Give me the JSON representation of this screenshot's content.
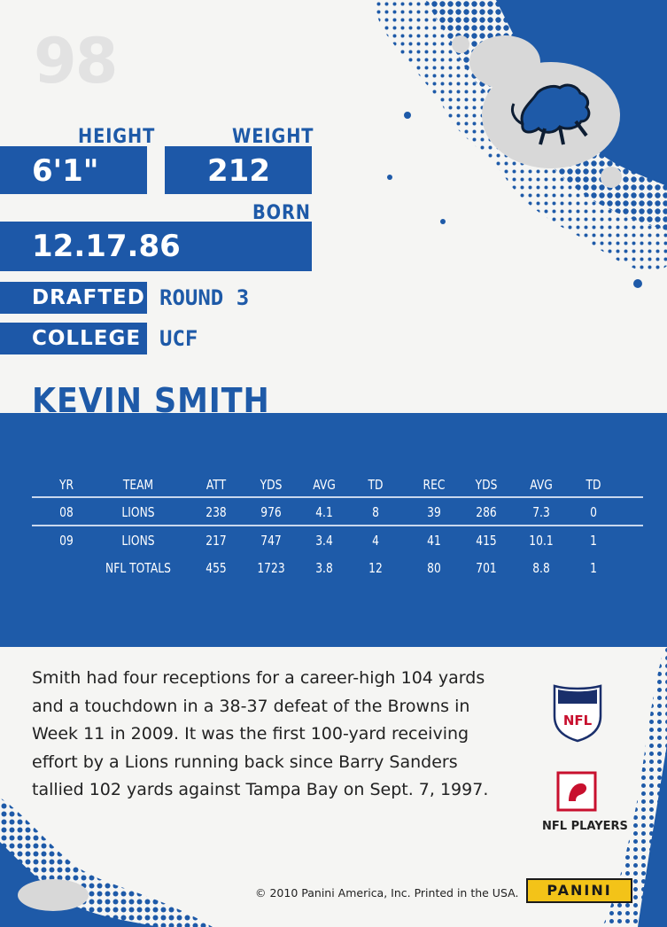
{
  "card_number": "98",
  "stats_labels": {
    "height": "HEIGHT",
    "weight": "WEIGHT",
    "born": "BORN",
    "drafted": "DRAFTED",
    "college": "COLLEGE"
  },
  "stats_values": {
    "height": "6'1\"",
    "weight": "212",
    "born": "12.17.86",
    "drafted": "ROUND 3",
    "college": "UCF"
  },
  "player_name": "KEVIN SMITH",
  "table": {
    "headers": [
      "YR",
      "TEAM",
      "ATT",
      "YDS",
      "AVG",
      "TD",
      "REC",
      "YDS",
      "AVG",
      "TD"
    ],
    "rows": [
      [
        "08",
        "LIONS",
        "238",
        "976",
        "4.1",
        "8",
        "39",
        "286",
        "7.3",
        "0"
      ],
      [
        "09",
        "LIONS",
        "217",
        "747",
        "3.4",
        "4",
        "41",
        "415",
        "10.1",
        "1"
      ],
      [
        "",
        "NFL TOTALS",
        "455",
        "1723",
        "3.8",
        "12",
        "80",
        "701",
        "8.8",
        "1"
      ]
    ]
  },
  "bio_lines": [
    "Smith had four receptions for a career-high 104 yards",
    "and a touchdown in a 38-37 defeat of the Browns in",
    "Week 11 in 2009. It was the first 100-yard receiving",
    "effort by a Lions running back since Barry Sanders",
    "tallied 102 yards against Tampa Bay on Sept. 7, 1997."
  ],
  "logos": {
    "nfl": "NFL",
    "nfl_players": "NFL PLAYERS",
    "panini": "PANINI"
  },
  "copyright": "© 2010 Panini America, Inc. Printed in the USA.",
  "colors": {
    "team_blue": "#1e5aa8",
    "panini_yellow": "#f3c318"
  }
}
